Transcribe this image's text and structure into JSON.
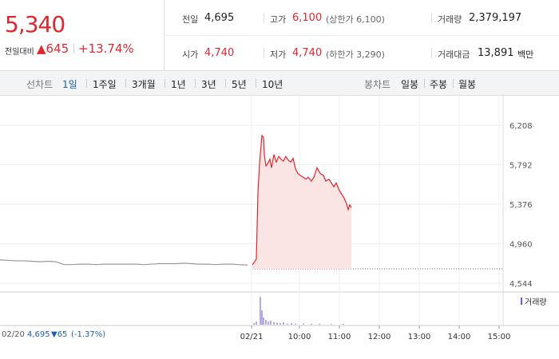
{
  "quote": {
    "price": "5,340",
    "change_label": "전일대비",
    "change": "▲645",
    "change_pct": "+13.74%"
  },
  "stats": [
    {
      "label": "전일",
      "value": "4,695"
    },
    {
      "label": "고가",
      "value": "6,100",
      "note": "(상한가 6,100)"
    },
    {
      "label": "거래량",
      "value": "2,379,197"
    },
    {
      "label": "시가",
      "value": "4,740"
    },
    {
      "label": "저가",
      "value": "4,740",
      "note": "(하한가 3,290)"
    },
    {
      "label": "거래대금",
      "value": "13,891",
      "unit": "백만"
    }
  ],
  "tabs": {
    "line_label": "선차트",
    "periods": [
      "1일",
      "1주일",
      "3개월",
      "1년",
      "3년",
      "5년",
      "10년"
    ],
    "candle_label": "봉차트",
    "candles": [
      "일봉",
      "주봉",
      "월봉"
    ]
  },
  "prev_day": {
    "date": "02/20",
    "close": "4,695",
    "change": "▼65",
    "change_pct": "(-1.37%)"
  },
  "chart_data": {
    "type": "line",
    "ylim": [
      4460,
      6477
    ],
    "yticks": [
      {
        "value": 4544,
        "label": "4,544"
      },
      {
        "value": 4960,
        "label": "4,960"
      },
      {
        "value": 5376,
        "label": "5,376"
      },
      {
        "value": 5792,
        "label": "5,792"
      },
      {
        "value": 6208,
        "label": "6,208"
      }
    ],
    "xlim": [
      0,
      126
    ],
    "xticks": [
      {
        "value": 63,
        "label": "02/21"
      },
      {
        "value": 75,
        "label": "10:00"
      },
      {
        "value": 85,
        "label": "11:00"
      },
      {
        "value": 95,
        "label": "12:00"
      },
      {
        "value": 105,
        "label": "13:00"
      },
      {
        "value": 115,
        "label": "14:00"
      },
      {
        "value": 125,
        "label": "15:00"
      }
    ],
    "reference_line": 4695,
    "series": [
      {
        "color": "#999999",
        "x": [
          0,
          2,
          4,
          6,
          8,
          10,
          12,
          14,
          16,
          18,
          20,
          22,
          24,
          26,
          28,
          30,
          32,
          34,
          36,
          38,
          40,
          42,
          44,
          46,
          48,
          50,
          52,
          54,
          56,
          58,
          60,
          62
        ],
        "values": [
          4790,
          4785,
          4780,
          4780,
          4775,
          4770,
          4775,
          4770,
          4740,
          4740,
          4745,
          4745,
          4740,
          4745,
          4745,
          4745,
          4745,
          4745,
          4740,
          4745,
          4750,
          4750,
          4750,
          4755,
          4750,
          4745,
          4745,
          4740,
          4745,
          4745,
          4740,
          4735
        ]
      },
      {
        "color": "#e0262e",
        "fill": "#fbe4e4",
        "x": [
          63.2,
          63.6,
          64.2,
          64.6,
          65.0,
          65.4,
          65.6,
          66.0,
          66.2,
          66.6,
          67,
          67.6,
          68,
          68.6,
          69.2,
          69.8,
          70.4,
          71,
          71.6,
          72.2,
          72.8,
          73.4,
          74,
          74.6,
          75.2,
          76,
          76.6,
          77.2,
          78,
          78.6,
          79.4,
          80.2,
          81,
          81.6,
          82.4,
          83,
          83.6,
          84.2,
          85,
          85.6,
          86.2,
          86.8,
          87.2,
          87.6,
          88
        ],
        "values": [
          4740,
          4760,
          4800,
          5500,
          5800,
          6000,
          6100,
          6080,
          5900,
          5780,
          5800,
          5850,
          5760,
          5900,
          5820,
          5880,
          5850,
          5830,
          5880,
          5840,
          5820,
          5860,
          5750,
          5700,
          5680,
          5660,
          5640,
          5660,
          5620,
          5660,
          5760,
          5700,
          5680,
          5620,
          5640,
          5600,
          5560,
          5600,
          5520,
          5480,
          5440,
          5380,
          5320,
          5370,
          5340
        ]
      }
    ],
    "volume": {
      "name": "거래량",
      "color": "#6a5acd",
      "x": [
        63.6,
        64.2,
        65.2,
        65.6,
        66.0,
        66.6,
        67.2,
        67.8,
        68.6,
        69.4,
        70.2,
        71,
        72,
        73,
        74,
        76,
        78,
        80,
        83,
        86
      ],
      "values": [
        20000,
        40000,
        350000,
        180000,
        90000,
        60000,
        40000,
        50000,
        30000,
        25000,
        20000,
        30000,
        15000,
        20000,
        12000,
        15000,
        10000,
        12000,
        8000,
        10000
      ]
    }
  }
}
